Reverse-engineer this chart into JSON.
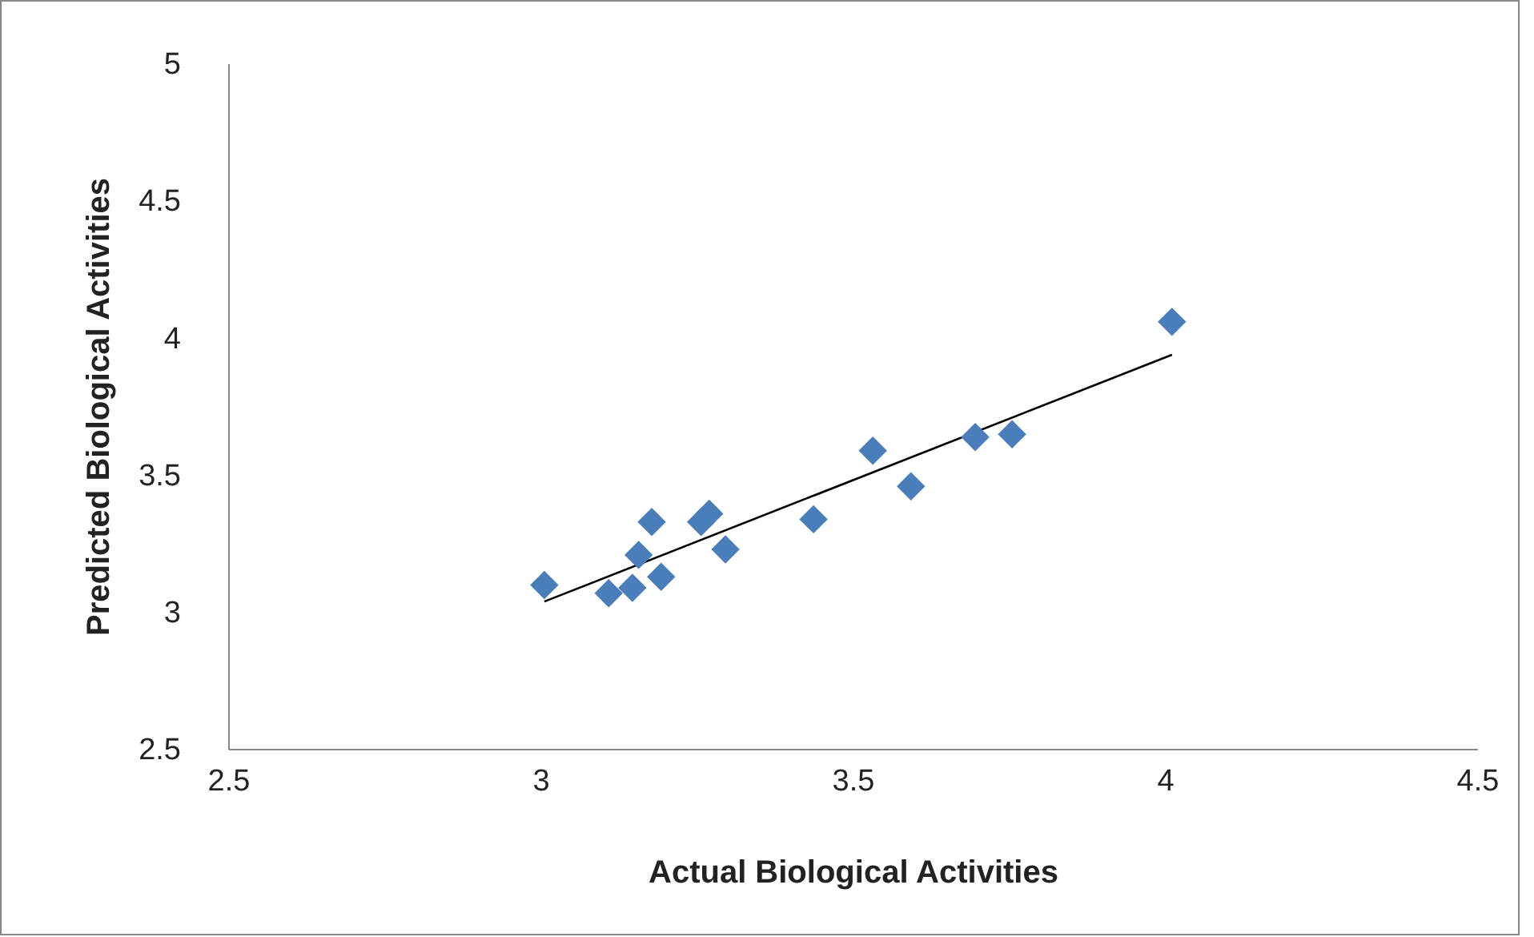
{
  "chart_data": {
    "type": "scatter",
    "xlabel": "Actual Biological Activities",
    "ylabel": "Predicted Biological Activities",
    "xlim": [
      2.5,
      4.5
    ],
    "xticks": [
      2.5,
      3,
      3.5,
      4,
      4.5
    ],
    "ylim": [
      2.5,
      5
    ],
    "yticks": [
      2.5,
      3,
      3.5,
      4,
      4.5,
      5
    ],
    "grid": false,
    "series": [
      {
        "color": "#4a7ebb",
        "marker": "diamond",
        "x": [
          3.005,
          3.108,
          3.146,
          3.156,
          3.177,
          3.192,
          3.256,
          3.269,
          3.295,
          3.436,
          3.531,
          3.592,
          3.695,
          3.754,
          4.01
        ],
        "values": [
          3.1,
          3.07,
          3.09,
          3.21,
          3.33,
          3.13,
          3.33,
          3.36,
          3.23,
          3.34,
          3.59,
          3.46,
          3.64,
          3.65,
          4.06
        ]
      },
      {
        "type": "line",
        "color": "#000000",
        "marker": "none",
        "line_style": "solid",
        "x": [
          3.005,
          4.01
        ],
        "values": [
          3.04,
          3.94
        ]
      }
    ]
  }
}
